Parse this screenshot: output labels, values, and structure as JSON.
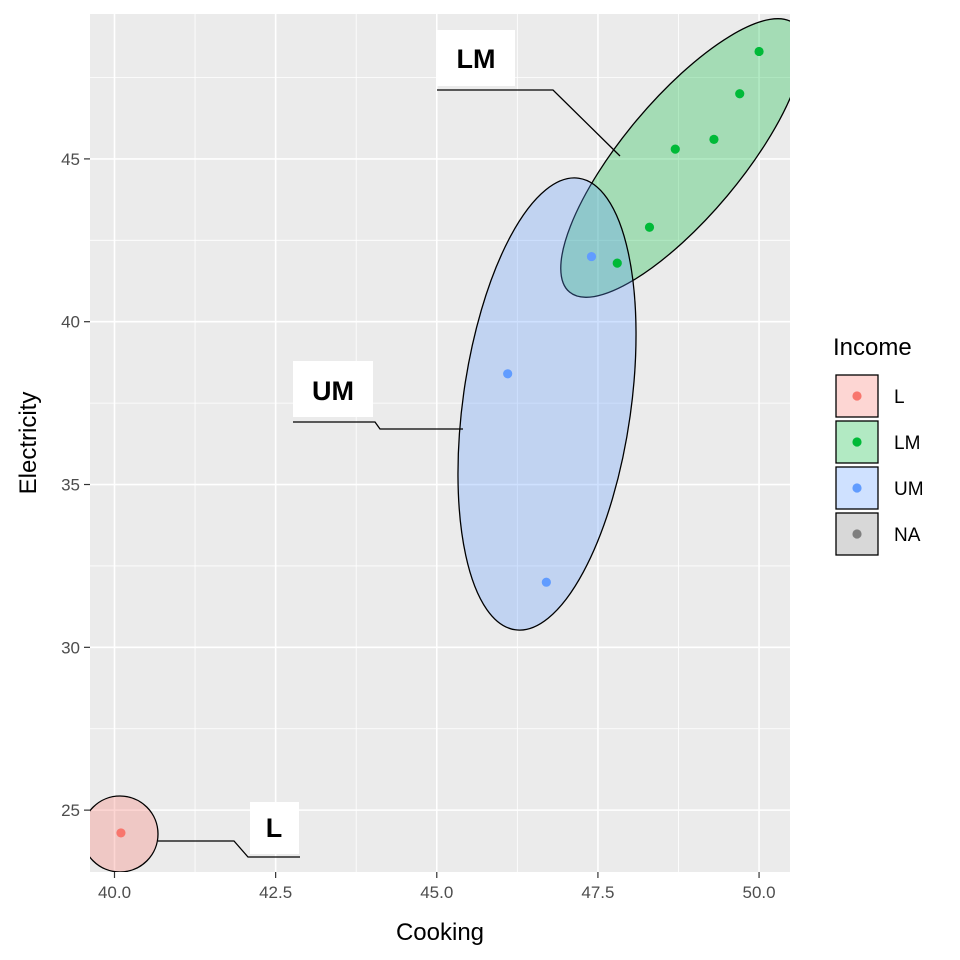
{
  "chart_data": {
    "type": "scatter",
    "xlabel": "Cooking",
    "ylabel": "Electricity",
    "xlim": [
      39.62,
      50.48
    ],
    "ylim": [
      23.1,
      49.45
    ],
    "x_ticks": [
      40.0,
      42.5,
      45.0,
      47.5,
      50.0
    ],
    "x_tick_labels": [
      "40.0",
      "42.5",
      "45.0",
      "47.5",
      "50.0"
    ],
    "y_ticks": [
      25,
      30,
      35,
      40,
      45
    ],
    "y_tick_labels": [
      "25",
      "30",
      "35",
      "40",
      "45"
    ],
    "grid": true,
    "legend": {
      "title": "Income",
      "position": "right",
      "entries": [
        {
          "label": "L",
          "color": "#F8766D",
          "fill": "#F8766D"
        },
        {
          "label": "LM",
          "color": "#00BA38",
          "fill": "#00BA38"
        },
        {
          "label": "UM",
          "color": "#619CFF",
          "fill": "#619CFF"
        },
        {
          "label": "NA",
          "color": "#7F7F7F",
          "fill": "#7F7F7F"
        }
      ]
    },
    "series": [
      {
        "name": "L",
        "color": "#F8766D",
        "label": "L",
        "points": [
          {
            "x": 40.1,
            "y": 24.3
          }
        ]
      },
      {
        "name": "LM",
        "color": "#00BA38",
        "label": "LM",
        "points": [
          {
            "x": 47.8,
            "y": 41.8
          },
          {
            "x": 48.3,
            "y": 42.9
          },
          {
            "x": 48.7,
            "y": 45.3
          },
          {
            "x": 49.3,
            "y": 45.6
          },
          {
            "x": 49.7,
            "y": 47.0
          },
          {
            "x": 50.0,
            "y": 48.3
          }
        ]
      },
      {
        "name": "UM",
        "color": "#619CFF",
        "label": "UM",
        "points": [
          {
            "x": 47.4,
            "y": 42.0
          },
          {
            "x": 46.1,
            "y": 38.4
          },
          {
            "x": 46.7,
            "y": 32.0
          }
        ]
      }
    ]
  }
}
